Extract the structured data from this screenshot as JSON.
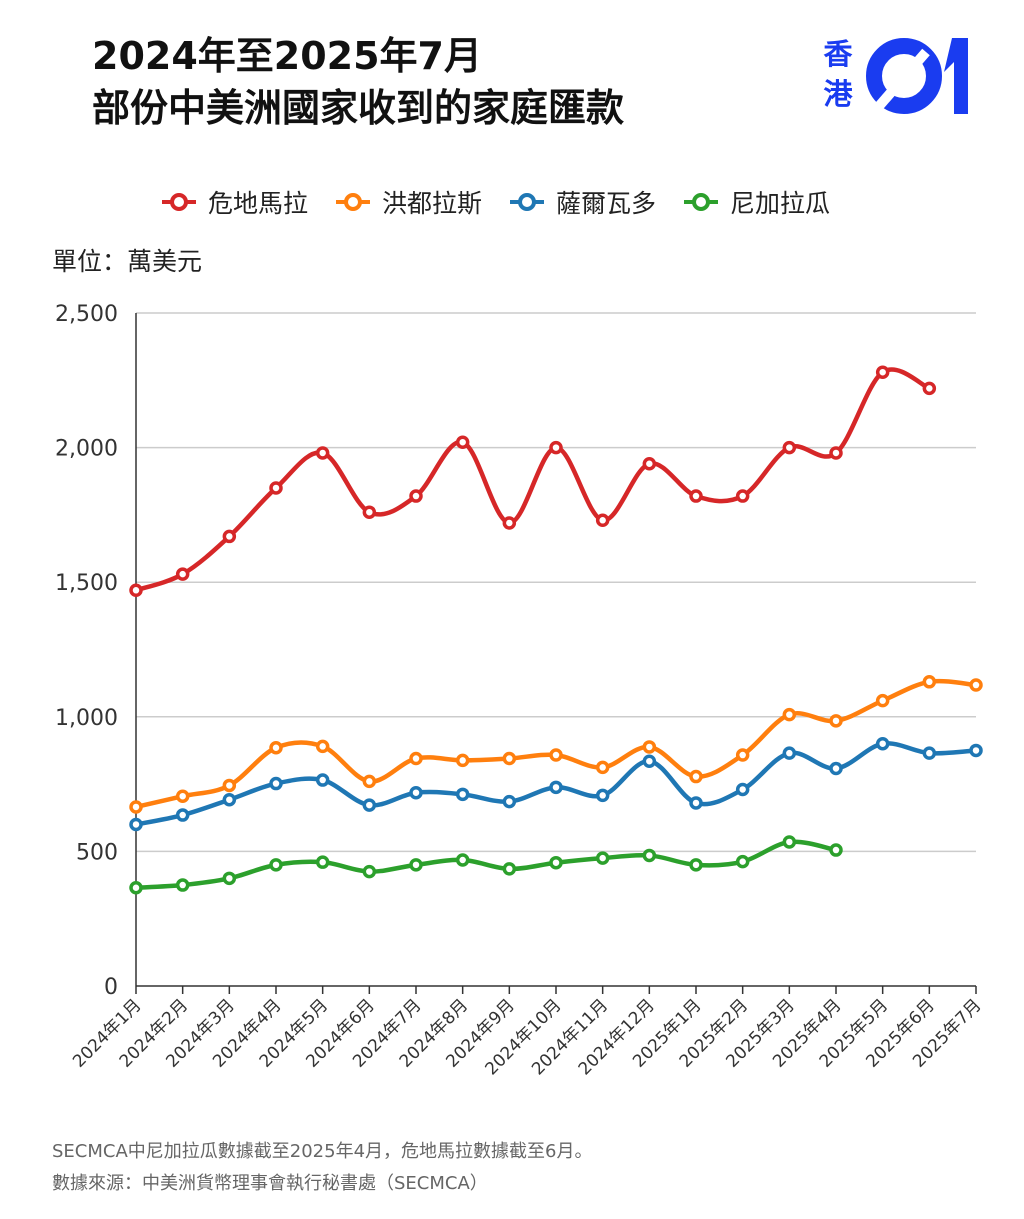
{
  "header": {
    "title_line1": "2024年至2025年7月",
    "title_line2": "部份中美洲國家收到的家庭匯款"
  },
  "logo": {
    "text_line1": "香",
    "text_line2": "港",
    "mark_text": "01",
    "color": "#1a3cf0"
  },
  "unit_label": "單位：萬美元",
  "footer": {
    "note": "SECMCA中尼加拉瓜數據截至2025年4月，危地馬拉數據截至6月。",
    "source": "數據來源：中美洲貨幣理事會執行秘書處（SECMCA）"
  },
  "chart_data": {
    "type": "line",
    "title": "2024年至2025年7月 部份中美洲國家收到的家庭匯款",
    "xlabel": "",
    "ylabel": "單位：萬美元",
    "ylim": [
      0,
      2500
    ],
    "yticks": [
      0,
      500,
      1000,
      1500,
      2000,
      2500
    ],
    "ytick_labels": [
      "0",
      "500",
      "1,000",
      "1,500",
      "2,000",
      "2,500"
    ],
    "grid": true,
    "legend_position": "top",
    "categories": [
      "2024年1月",
      "2024年2月",
      "2024年3月",
      "2024年4月",
      "2024年5月",
      "2024年6月",
      "2024年7月",
      "2024年8月",
      "2024年9月",
      "2024年10月",
      "2024年11月",
      "2024年12月",
      "2025年1月",
      "2025年2月",
      "2025年3月",
      "2025年4月",
      "2025年5月",
      "2025年6月",
      "2025年7月"
    ],
    "series": [
      {
        "name": "危地馬拉",
        "color": "#d62728",
        "values": [
          1470,
          1530,
          1670,
          1850,
          1980,
          1760,
          1820,
          2020,
          1720,
          2000,
          1730,
          1940,
          1820,
          1820,
          2000,
          1980,
          2280,
          2220,
          null
        ]
      },
      {
        "name": "洪都拉斯",
        "color": "#ff7f0e",
        "values": [
          665,
          705,
          745,
          885,
          890,
          760,
          845,
          838,
          845,
          858,
          812,
          888,
          778,
          858,
          1008,
          985,
          1060,
          1130,
          1118
        ]
      },
      {
        "name": "薩爾瓦多",
        "color": "#1f77b4",
        "values": [
          600,
          635,
          692,
          752,
          765,
          672,
          718,
          712,
          685,
          738,
          708,
          835,
          680,
          730,
          865,
          808,
          900,
          865,
          875
        ]
      },
      {
        "name": "尼加拉瓜",
        "color": "#2ca02c",
        "values": [
          365,
          375,
          400,
          450,
          460,
          425,
          450,
          468,
          435,
          458,
          475,
          485,
          450,
          462,
          535,
          505,
          null,
          null,
          null
        ]
      }
    ]
  }
}
